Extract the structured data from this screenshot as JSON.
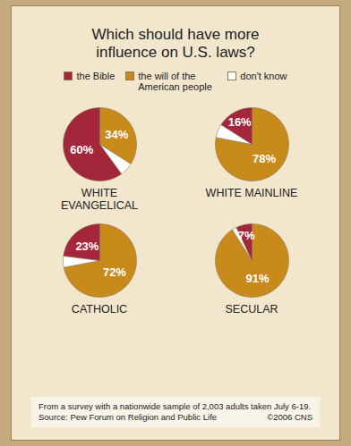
{
  "title": "Which should have more influence on U.S. laws?",
  "legend": "top",
  "note": "From a survey with a nationwide sample of 2,003 adults taken July 6-19.",
  "source": "Source: Pew Forum on Religion and Public Life",
  "credit": "©2006 CNS",
  "chart_data": [
    {
      "type": "pie",
      "title": "WHITE EVANGELICAL",
      "categories": [
        "the Bible",
        "the will of the American people",
        "don't know"
      ],
      "values": [
        60,
        34,
        6
      ],
      "value_labels": [
        "60%",
        "34%",
        null
      ],
      "colors": [
        "#a3263a",
        "#c98a1c",
        "#ffffff"
      ],
      "data_labels": true
    },
    {
      "type": "pie",
      "title": "WHITE MAINLINE",
      "categories": [
        "the Bible",
        "the will of the American people",
        "don't know"
      ],
      "values": [
        16,
        78,
        6
      ],
      "value_labels": [
        "16%",
        "78%",
        null
      ],
      "colors": [
        "#a3263a",
        "#c98a1c",
        "#ffffff"
      ],
      "data_labels": true
    },
    {
      "type": "pie",
      "title": "CATHOLIC",
      "categories": [
        "the Bible",
        "the will of the American people",
        "don't know"
      ],
      "values": [
        23,
        72,
        5
      ],
      "value_labels": [
        "23%",
        "72%",
        null
      ],
      "colors": [
        "#a3263a",
        "#c98a1c",
        "#ffffff"
      ],
      "data_labels": true
    },
    {
      "type": "pie",
      "title": "SECULAR",
      "categories": [
        "the Bible",
        "the will of the American people",
        "don't know"
      ],
      "values": [
        7,
        91,
        2
      ],
      "value_labels": [
        "7%",
        "91%",
        null
      ],
      "colors": [
        "#a3263a",
        "#c98a1c",
        "#ffffff"
      ],
      "data_labels": true
    }
  ]
}
